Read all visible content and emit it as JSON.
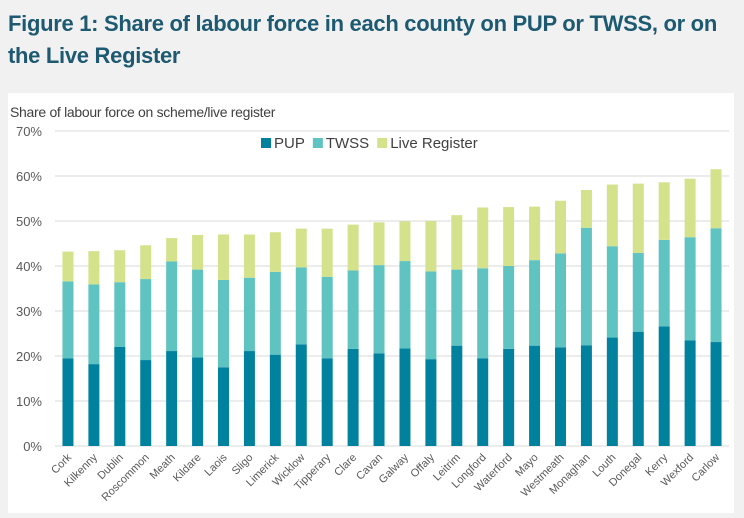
{
  "figure_title": "Figure 1: Share of labour force in each county on PUP or TWSS, or on the Live Register",
  "chart_data": {
    "type": "bar",
    "stacked": true,
    "title": "Figure 1: Share of labour force in each county on PUP or TWSS, or on the Live Register",
    "ylabel": "Share of labour force on scheme/live register",
    "xlabel": "",
    "ylim": [
      0,
      70
    ],
    "yticks": [
      "0%",
      "10%",
      "20%",
      "30%",
      "40%",
      "50%",
      "60%",
      "70%"
    ],
    "ytick_values": [
      0,
      10,
      20,
      30,
      40,
      50,
      60,
      70
    ],
    "grid": true,
    "legend_position": "top-center",
    "categories": [
      "Cork",
      "Kilkenny",
      "Dublin",
      "Roscommon",
      "Meath",
      "Kildare",
      "Laois",
      "Sligo",
      "Limerick",
      "Wicklow",
      "Tipperary",
      "Clare",
      "Cavan",
      "Galway",
      "Offaly",
      "Leitrim",
      "Longford",
      "Waterford",
      "Mayo",
      "Westmeath",
      "Monaghan",
      "Louth",
      "Donegal",
      "Kerry",
      "Wexford",
      "Carlow"
    ],
    "series": [
      {
        "name": "PUP",
        "color": "#00829f",
        "values": [
          19.5,
          18.2,
          22.0,
          19.1,
          21.1,
          19.7,
          17.5,
          21.1,
          20.3,
          22.6,
          19.5,
          21.6,
          20.6,
          21.7,
          19.3,
          22.3,
          19.5,
          21.6,
          22.3,
          21.9,
          22.4,
          24.1,
          25.4,
          26.6,
          23.5,
          23.1
        ]
      },
      {
        "name": "TWSS",
        "color": "#5fc4c1",
        "values": [
          17.1,
          17.7,
          14.4,
          18.0,
          19.9,
          19.5,
          19.4,
          16.3,
          18.4,
          17.1,
          18.1,
          17.4,
          19.6,
          19.4,
          19.5,
          16.9,
          20.0,
          18.4,
          19.0,
          20.9,
          26.1,
          20.3,
          17.5,
          19.2,
          22.9,
          25.3
        ]
      },
      {
        "name": "Live Register",
        "color": "#d4e28c",
        "values": [
          6.6,
          7.4,
          7.1,
          7.5,
          5.2,
          7.7,
          10.1,
          9.6,
          8.8,
          8.6,
          10.7,
          10.2,
          9.5,
          8.8,
          11.2,
          12.1,
          13.5,
          13.1,
          11.9,
          11.7,
          8.4,
          13.7,
          15.4,
          12.8,
          13.0,
          13.1
        ]
      }
    ]
  }
}
